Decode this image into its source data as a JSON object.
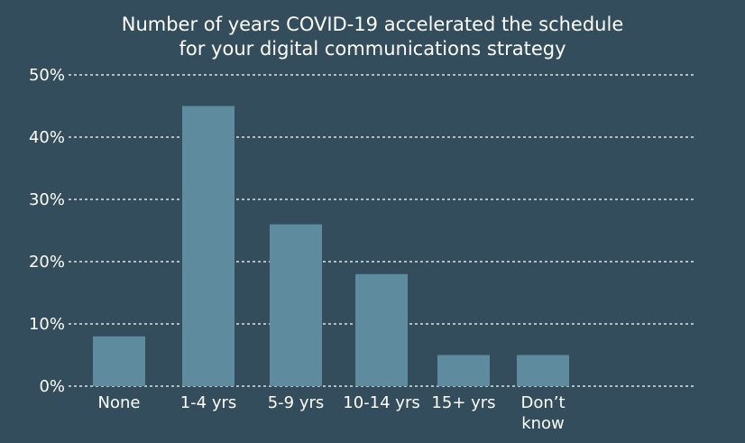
{
  "chart_data": {
    "type": "bar",
    "title_lines": [
      "Number of years COVID-19 accelerated the schedule",
      "for your digital communications strategy"
    ],
    "categories": [
      [
        "None"
      ],
      [
        "1-4 yrs"
      ],
      [
        "5-9 yrs"
      ],
      [
        "10-14 yrs"
      ],
      [
        "15+ yrs"
      ],
      [
        "Don’t",
        "know"
      ]
    ],
    "values": [
      8,
      45,
      26,
      18,
      5,
      5
    ],
    "y_ticks": [
      "0%",
      "10%",
      "20%",
      "30%",
      "40%",
      "50%"
    ],
    "ylim": [
      0,
      50
    ],
    "grid": true,
    "colors": {
      "background": "#344d5c",
      "bar": "#5f8b9e",
      "grid": "#ffffff",
      "text": "#ffffff"
    }
  }
}
